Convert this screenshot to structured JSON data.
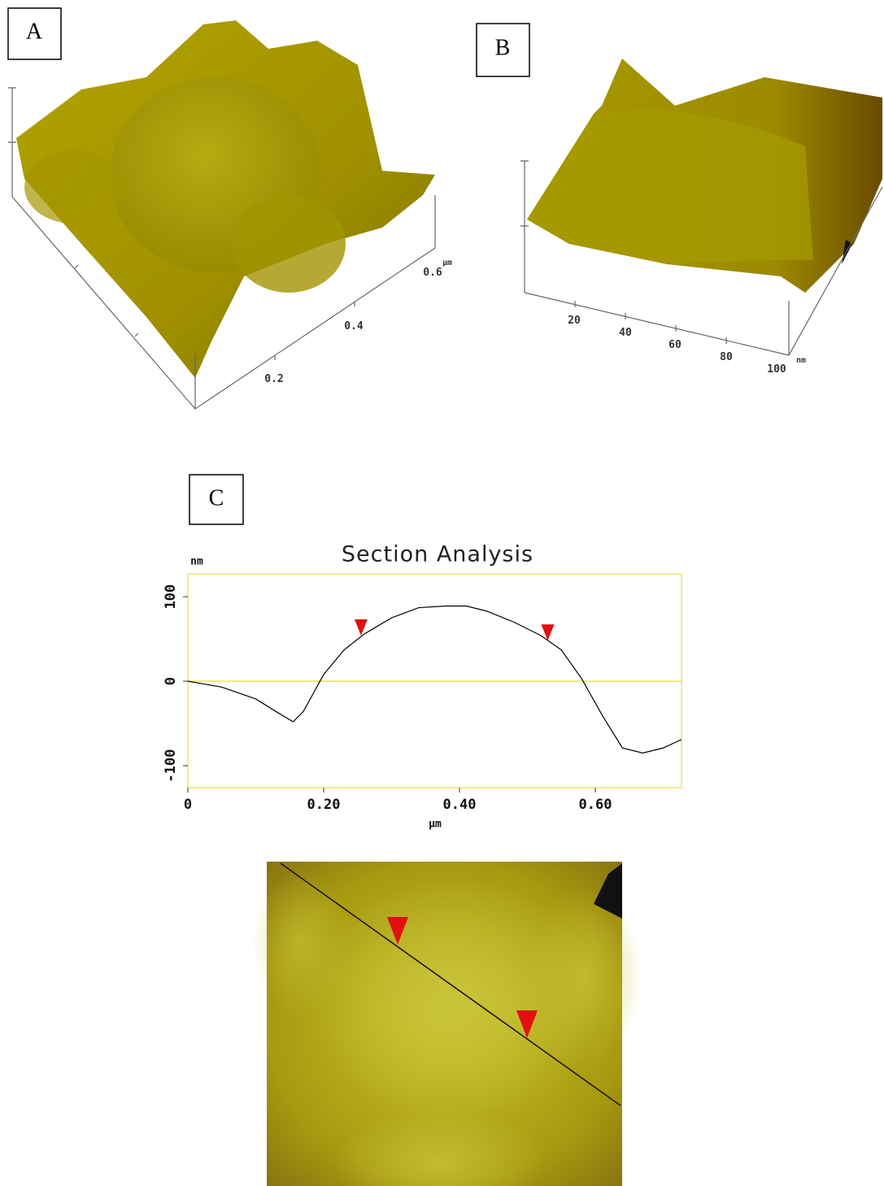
{
  "panels": {
    "a": {
      "label": "A",
      "axis_labels": [
        "0.2",
        "0.4",
        "0.6"
      ],
      "unit": "µm"
    },
    "b": {
      "label": "B",
      "axis_labels": [
        "20",
        "40",
        "60",
        "80",
        "100"
      ],
      "unit": "nm"
    },
    "c": {
      "label": "C"
    }
  },
  "chart_data": {
    "type": "line",
    "title": "Section Analysis",
    "x_label": "µm",
    "y_label": "nm",
    "x": [
      0,
      0.05,
      0.1,
      0.13,
      0.155,
      0.17,
      0.2,
      0.23,
      0.26,
      0.3,
      0.34,
      0.38,
      0.41,
      0.44,
      0.48,
      0.52,
      0.55,
      0.58,
      0.61,
      0.64,
      0.67,
      0.7,
      0.727
    ],
    "values": [
      0,
      -7,
      -21,
      -36,
      -48,
      -36,
      8,
      37,
      56,
      75,
      87,
      89,
      89,
      83,
      70,
      54,
      37,
      3,
      -40,
      -79,
      -85,
      -79,
      -69
    ],
    "color": "#000000",
    "xlim": [
      0,
      0.727
    ],
    "ylim": [
      -126,
      127
    ],
    "xticks": [
      0,
      {
        "value": 0.2,
        "label": "0.20"
      },
      {
        "value": 0.4,
        "label": "0.40"
      },
      {
        "value": 0.6,
        "label": "0.60"
      }
    ],
    "yticks": [
      -100,
      0,
      100
    ],
    "zero_line": true,
    "markers": {
      "x": [
        0.255,
        0.53
      ],
      "y": [
        54,
        48
      ],
      "color": "#e01010"
    }
  }
}
